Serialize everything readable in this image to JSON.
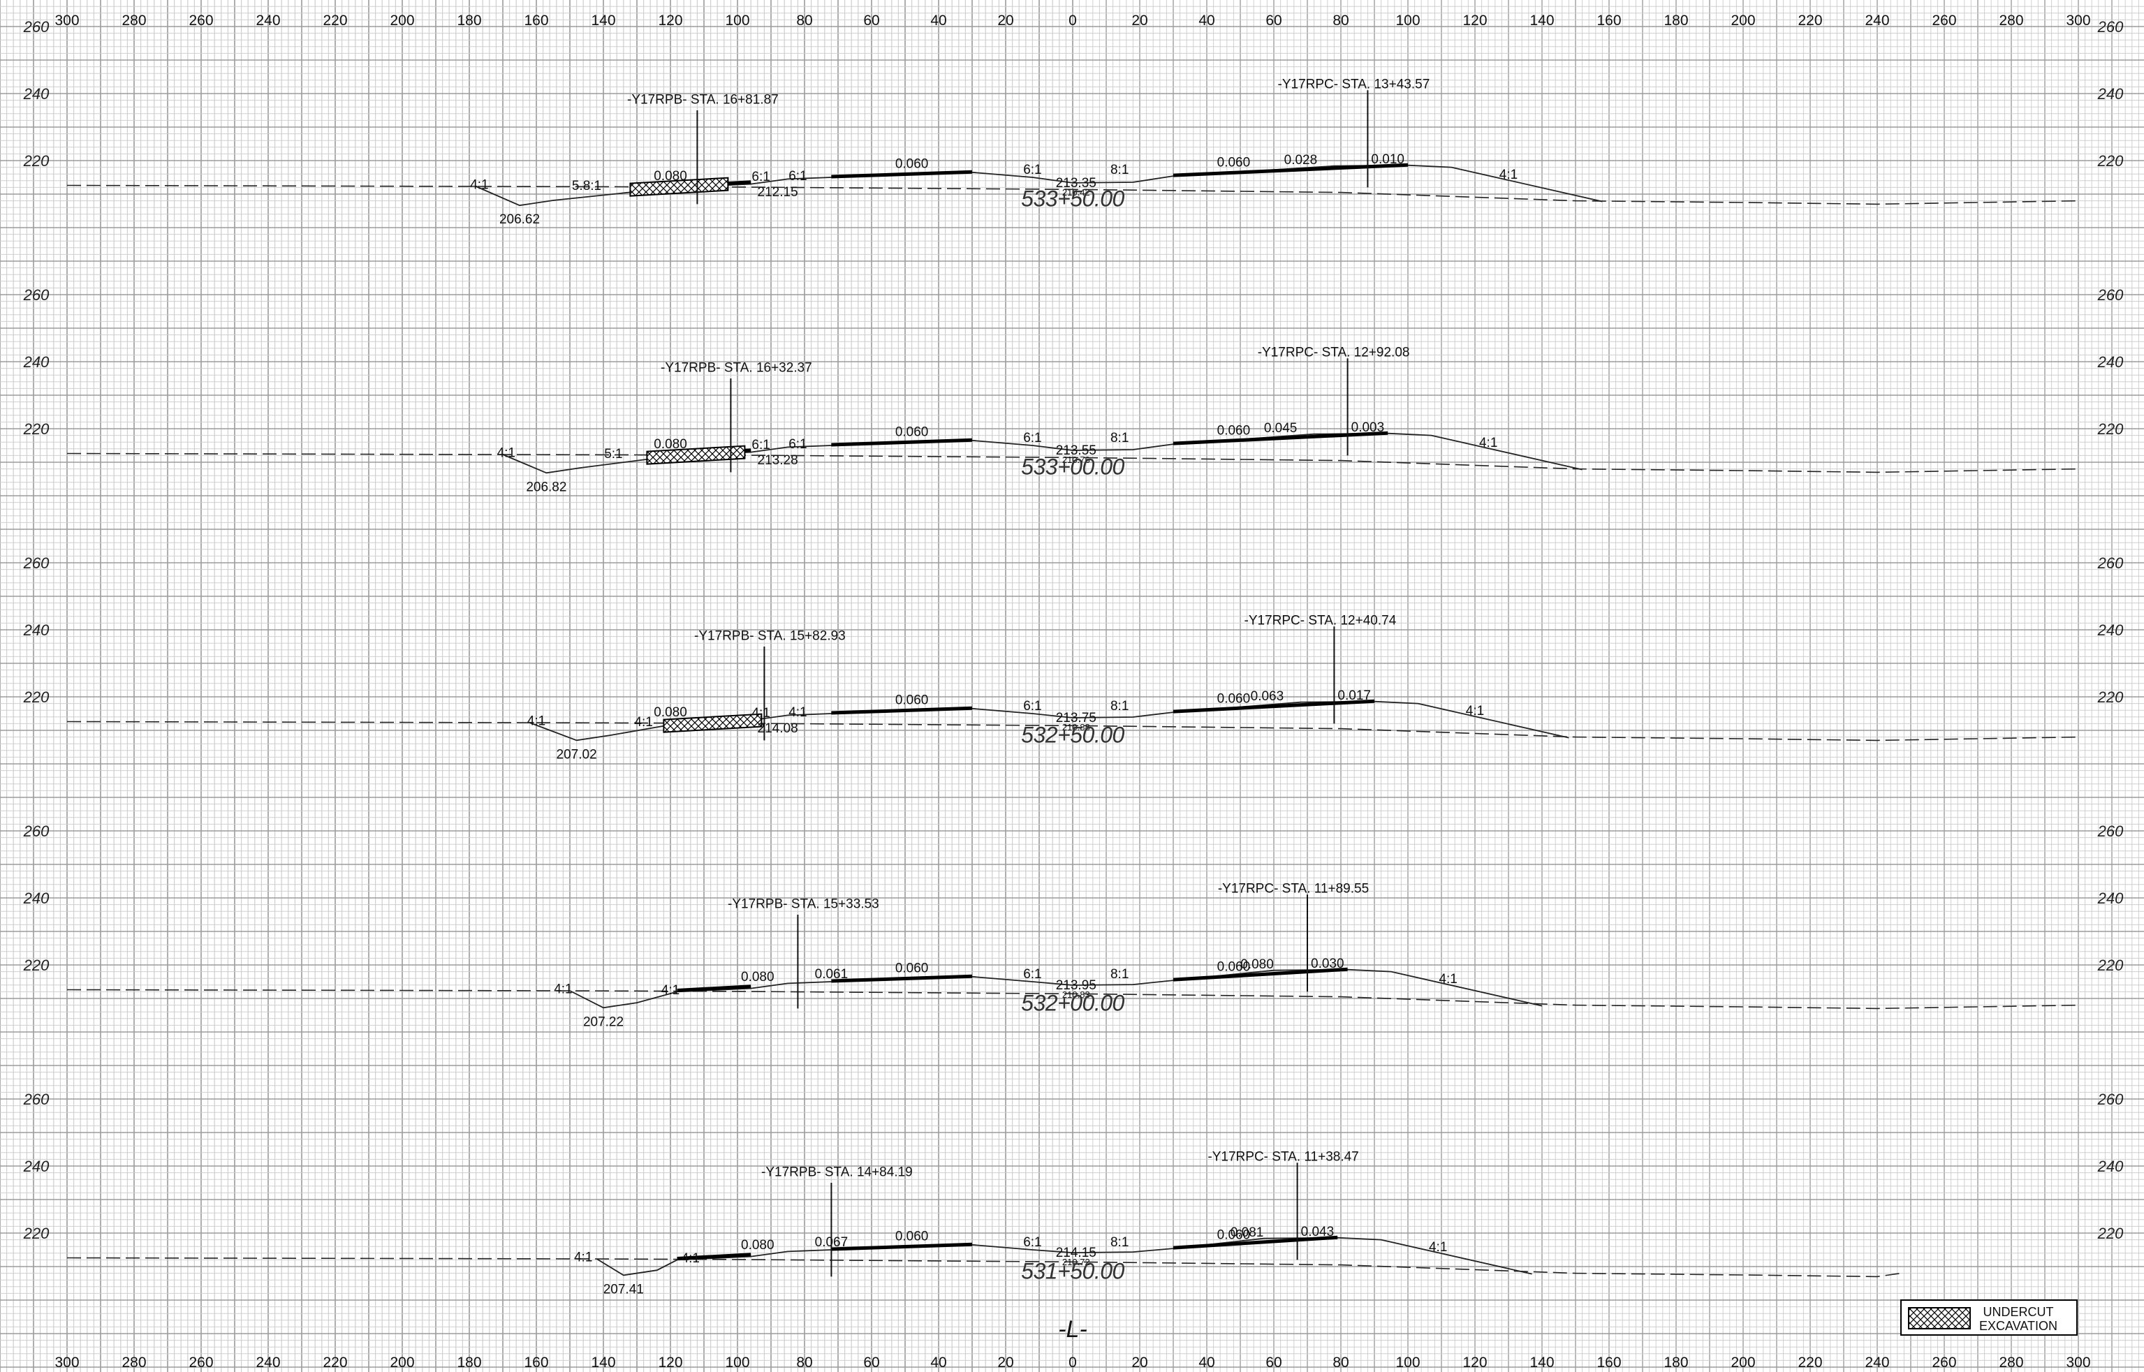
{
  "axis": {
    "offsets_top": [
      "300",
      "280",
      "260",
      "240",
      "220",
      "200",
      "180",
      "160",
      "140",
      "120",
      "100",
      "80",
      "60",
      "40",
      "20",
      "0",
      "20",
      "40",
      "60",
      "80",
      "100",
      "120",
      "140",
      "160",
      "180",
      "200",
      "220",
      "240",
      "260",
      "280",
      "300"
    ],
    "offsets_bottom": [
      "300",
      "280",
      "260",
      "240",
      "220",
      "200",
      "180",
      "160",
      "140",
      "120",
      "100",
      "80",
      "60",
      "40",
      "20",
      "0",
      "20",
      "40",
      "60",
      "80",
      "100",
      "120",
      "140",
      "160",
      "180",
      "200",
      "220",
      "240",
      "260",
      "280",
      "300"
    ],
    "elevations": [
      "260",
      "240",
      "220"
    ]
  },
  "sections": [
    {
      "station": "533+50.00",
      "rpb_label": "-Y17RPB- STA. 16+81.87",
      "rpc_label": "-Y17RPC- STA. 13+43.57",
      "ditch_elev": "206.62",
      "left_slope_a": "4:1",
      "left_slope_b": "5.8:1",
      "shoulder_elev": "212.15",
      "cl_elev": "213.35",
      "cl_elev_small": "210.42",
      "slopes_left_shoulder": "6:1",
      "slopes_left_shoulder_b": "6:1",
      "slope_median_a": "6:1",
      "slope_median_b": "8:1",
      "slope_right_fill": "4:1",
      "cross_slopes": [
        "0.080",
        "0.060",
        "0.060",
        "0.028",
        "0.010"
      ],
      "has_undercut": true
    },
    {
      "station": "533+00.00",
      "rpb_label": "-Y17RPB- STA. 16+32.37",
      "rpc_label": "-Y17RPC- STA. 12+92.08",
      "ditch_elev": "206.82",
      "left_slope_a": "4:1",
      "left_slope_b": "5:1",
      "shoulder_elev": "213.28",
      "cl_elev": "213.55",
      "cl_elev_small": "210.76",
      "slopes_left_shoulder": "6:1",
      "slopes_left_shoulder_b": "6:1",
      "slope_median_a": "6:1",
      "slope_median_b": "8:1",
      "slope_right_fill": "4:1",
      "cross_slopes": [
        "0.080",
        "0.060",
        "0.060",
        "0.045",
        "0.003"
      ],
      "has_undercut": true
    },
    {
      "station": "532+50.00",
      "rpb_label": "-Y17RPB- STA. 15+82.93",
      "rpc_label": "-Y17RPC- STA. 12+40.74",
      "ditch_elev": "207.02",
      "left_slope_a": "4:1",
      "left_slope_b": "4:1",
      "shoulder_elev": "214.08",
      "cl_elev": "213.75",
      "cl_elev_small": "210.88",
      "slopes_left_shoulder": "4:1",
      "slopes_left_shoulder_b": "4:1",
      "slope_median_a": "6:1",
      "slope_median_b": "8:1",
      "slope_right_fill": "4:1",
      "cross_slopes": [
        "0.080",
        "0.060",
        "0.060",
        "0.063",
        "0.017"
      ],
      "has_undercut": true
    },
    {
      "station": "532+00.00",
      "rpb_label": "-Y17RPB- STA. 15+33.53",
      "rpc_label": "-Y17RPC- STA. 11+89.55",
      "ditch_elev": "207.22",
      "left_slope_a": "4:1",
      "left_slope_b": "4:1",
      "shoulder_elev": "",
      "cl_elev": "213.95",
      "cl_elev_small": "210.83",
      "slopes_left_shoulder": "",
      "slopes_left_shoulder_b": "",
      "slope_median_a": "6:1",
      "slope_median_b": "8:1",
      "slope_right_fill": "4:1",
      "cross_slopes": [
        "0.080",
        "0.061",
        "0.060",
        "0.060",
        "0.080",
        "0.030"
      ],
      "has_undercut": false
    },
    {
      "station": "531+50.00",
      "rpb_label": "-Y17RPB- STA. 14+84.19",
      "rpc_label": "-Y17RPC- STA. 11+38.47",
      "ditch_elev": "207.41",
      "left_slope_a": "4:1",
      "left_slope_b": "4:1",
      "shoulder_elev": "",
      "cl_elev": "214.15",
      "cl_elev_small": "210.72",
      "slopes_left_shoulder": "",
      "slopes_left_shoulder_b": "",
      "slope_median_a": "6:1",
      "slope_median_b": "8:1",
      "slope_right_fill": "4:1",
      "cross_slopes": [
        "0.080",
        "0.067",
        "0.060",
        "0.060",
        "0.081",
        "0.043"
      ],
      "has_undercut": false
    }
  ],
  "centerline_symbol": "-L-",
  "legend": {
    "line1": "UNDERCUT",
    "line2": "EXCAVATION"
  }
}
